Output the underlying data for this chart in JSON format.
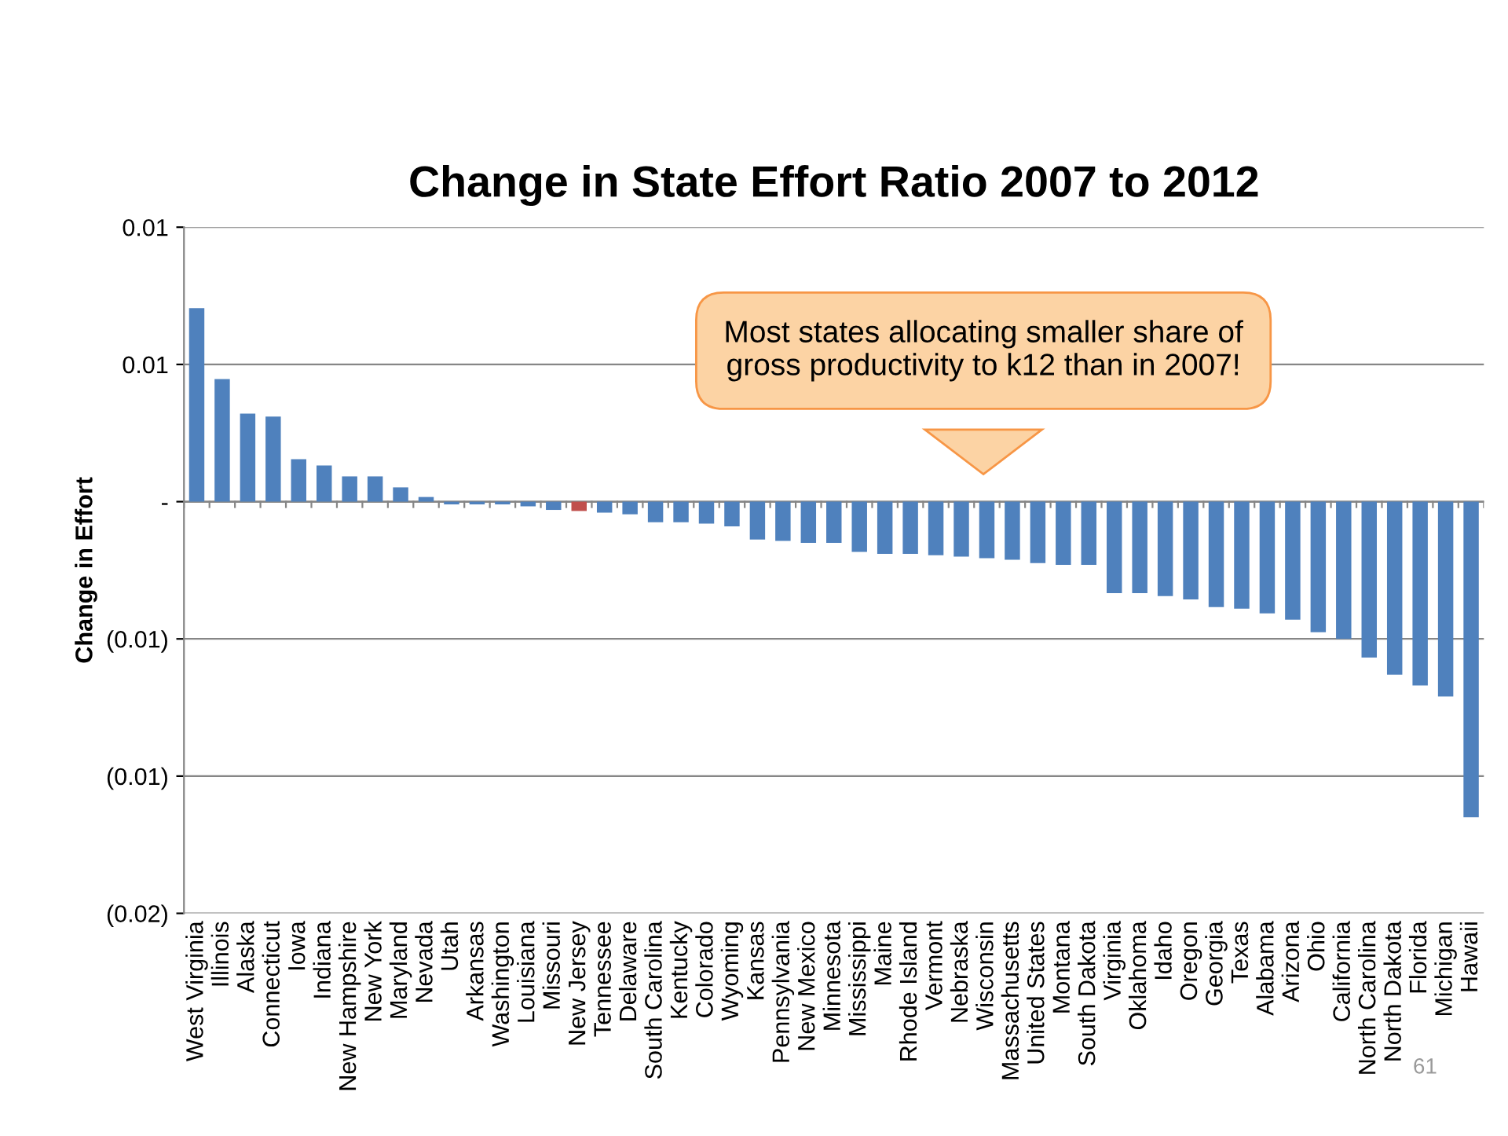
{
  "chart_data": {
    "type": "bar",
    "title": "Change in State Effort Ratio 2007 to 2012",
    "ylabel": "Change in Effort",
    "categories": [
      "West Virginia",
      "Illinois",
      "Alaska",
      "Connecticut",
      "Iowa",
      "Indiana",
      "New Hampshire",
      "New York",
      "Maryland",
      "Nevada",
      "Utah",
      "Arkansas",
      "Washington",
      "Louisiana",
      "Missouri",
      "New Jersey",
      "Tennessee",
      "Delaware",
      "South Carolina",
      "Kentucky",
      "Colorado",
      "Wyoming",
      "Kansas",
      "Pennsylvania",
      "New Mexico",
      "Minnesota",
      "Mississippi",
      "Maine",
      "Rhode Island",
      "Vermont",
      "Nebraska",
      "Wisconsin",
      "Massachusetts",
      "United States",
      "Montana",
      "South Dakota",
      "Virginia",
      "Oklahoma",
      "Idaho",
      "Oregon",
      "Georgia",
      "Texas",
      "Alabama",
      "Arizona",
      "Ohio",
      "California",
      "North Carolina",
      "North Dakota",
      "Florida",
      "Michigan",
      "Hawaii"
    ],
    "values": [
      0.00705,
      0.00447,
      0.00321,
      0.0031,
      0.00155,
      0.00132,
      0.00092,
      0.00092,
      0.00052,
      0.00017,
      -0.0001,
      -0.0001,
      -0.0001,
      -0.00017,
      -0.0003,
      -0.00034,
      -0.0004,
      -0.00046,
      -0.00075,
      -0.00075,
      -0.0008,
      -0.0009,
      -0.00138,
      -0.00143,
      -0.0015,
      -0.0015,
      -0.00183,
      -0.0019,
      -0.0019,
      -0.00195,
      -0.002,
      -0.00206,
      -0.00212,
      -0.00224,
      -0.0023,
      -0.0023,
      -0.00333,
      -0.00333,
      -0.00344,
      -0.00356,
      -0.00384,
      -0.0039,
      -0.00407,
      -0.0043,
      -0.00476,
      -0.005,
      -0.00568,
      -0.0063,
      -0.0067,
      -0.0071,
      -0.0115
    ],
    "colors": [
      "#4f81bd",
      "#4f81bd",
      "#4f81bd",
      "#4f81bd",
      "#4f81bd",
      "#4f81bd",
      "#4f81bd",
      "#4f81bd",
      "#4f81bd",
      "#4f81bd",
      "#4f81bd",
      "#4f81bd",
      "#4f81bd",
      "#4f81bd",
      "#4f81bd",
      "#c0504d",
      "#4f81bd",
      "#4f81bd",
      "#4f81bd",
      "#4f81bd",
      "#4f81bd",
      "#4f81bd",
      "#4f81bd",
      "#4f81bd",
      "#4f81bd",
      "#4f81bd",
      "#4f81bd",
      "#4f81bd",
      "#4f81bd",
      "#4f81bd",
      "#4f81bd",
      "#4f81bd",
      "#4f81bd",
      "#4f81bd",
      "#4f81bd",
      "#4f81bd",
      "#4f81bd",
      "#4f81bd",
      "#4f81bd",
      "#4f81bd",
      "#4f81bd",
      "#4f81bd",
      "#4f81bd",
      "#4f81bd",
      "#4f81bd",
      "#4f81bd",
      "#4f81bd",
      "#4f81bd",
      "#4f81bd",
      "#4f81bd",
      "#4f81bd"
    ],
    "ylim": [
      -0.015,
      0.01
    ],
    "yticks": [
      {
        "value": 0.01,
        "label": "0.01"
      },
      {
        "value": 0.005,
        "label": "0.01"
      },
      {
        "value": 0,
        "label": "-"
      },
      {
        "value": -0.005,
        "label": "(0.01)"
      },
      {
        "value": -0.01,
        "label": "(0.01)"
      },
      {
        "value": -0.015,
        "label": "(0.02)"
      }
    ],
    "grid": "y",
    "annotations": [
      "Most states allocating smaller share of\ngross productivity to k12 than in 2007!",
      "61"
    ]
  }
}
